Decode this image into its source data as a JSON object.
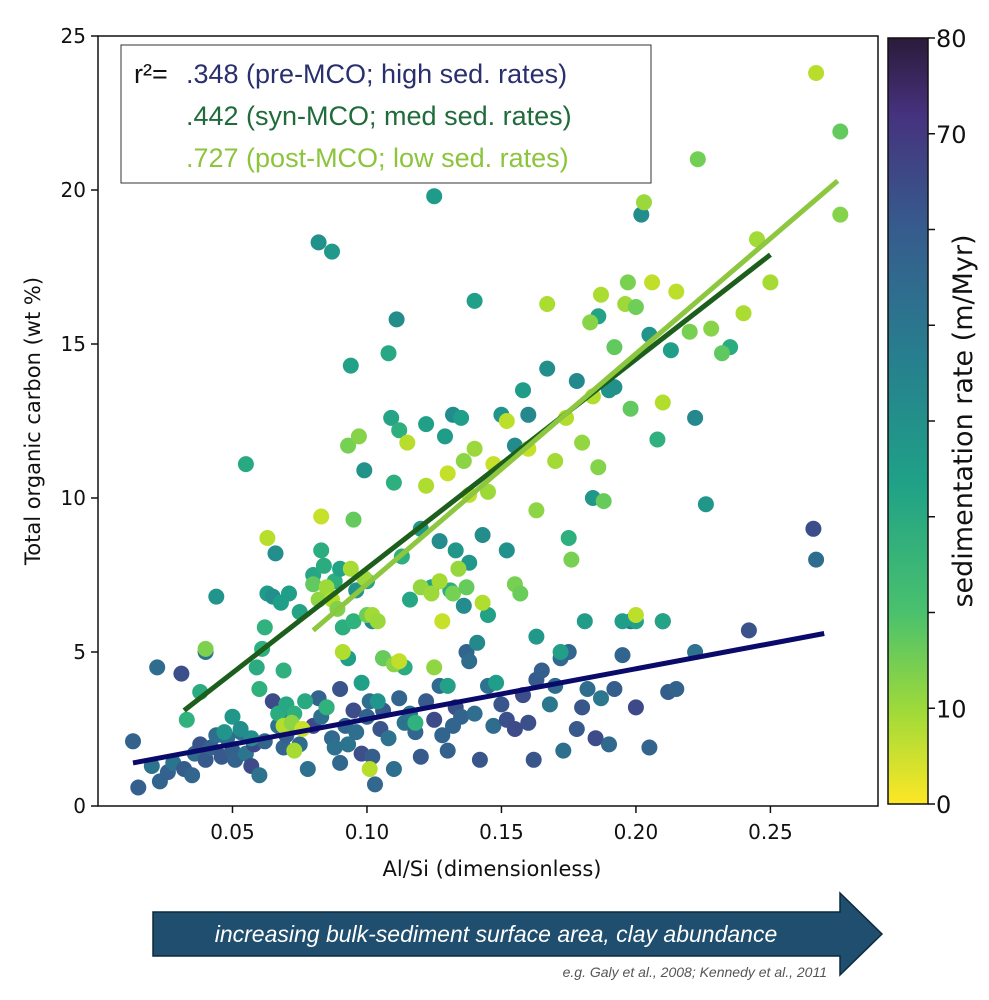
{
  "chart_data": {
    "type": "scatter",
    "xlabel": "Al/Si (dimensionless)",
    "ylabel": "Total organic carbon (wt %)",
    "xlim": [
      0.0,
      0.29
    ],
    "ylim": [
      0,
      25
    ],
    "x_ticks": [
      "0.05",
      "0.10",
      "0.15",
      "0.20",
      "0.25"
    ],
    "y_ticks": [
      "0",
      "5",
      "10",
      "15",
      "20",
      "25"
    ],
    "colorbar": {
      "label": "sedimentation rate (m/Myr)",
      "range": [
        0,
        80
      ],
      "colormap": "viridis_r",
      "ticks": [
        "0",
        "10",
        "70",
        "80"
      ]
    },
    "legend": {
      "prefix": "r²=",
      "entries": [
        {
          "text": ".348 (pre-MCO; high sed. rates)",
          "color": "#2a2f6e"
        },
        {
          "text": ".442 (syn-MCO; med sed. rates)",
          "color": "#1f6b3a"
        },
        {
          "text": ".727 (post-MCO; low sed. rates)",
          "color": "#8cc43c"
        }
      ]
    },
    "fit_lines": [
      {
        "name": "pre-MCO",
        "color": "#0a0a6a",
        "x": [
          0.013,
          0.27
        ],
        "y": [
          1.4,
          5.6
        ]
      },
      {
        "name": "syn-MCO",
        "color": "#1d5e1d",
        "x": [
          0.032,
          0.25
        ],
        "y": [
          3.1,
          17.9
        ]
      },
      {
        "name": "post-MCO",
        "color": "#8dc63f",
        "x": [
          0.08,
          0.275
        ],
        "y": [
          5.7,
          20.3
        ]
      }
    ],
    "series": [
      {
        "group": "pre-MCO",
        "sed_rate": 62,
        "points": [
          [
            0.013,
            2.1
          ],
          [
            0.015,
            0.6
          ],
          [
            0.02,
            1.3
          ],
          [
            0.022,
            4.5
          ],
          [
            0.023,
            0.8
          ],
          [
            0.026,
            1.1
          ],
          [
            0.028,
            1.4
          ],
          [
            0.031,
            4.3
          ],
          [
            0.032,
            1.2
          ],
          [
            0.035,
            1.0
          ],
          [
            0.036,
            1.7
          ],
          [
            0.038,
            2.0
          ],
          [
            0.04,
            1.5
          ],
          [
            0.04,
            5.0
          ],
          [
            0.042,
            1.9
          ],
          [
            0.044,
            2.3
          ],
          [
            0.046,
            1.6
          ],
          [
            0.048,
            2.2
          ],
          [
            0.05,
            1.8
          ],
          [
            0.051,
            1.5
          ],
          [
            0.053,
            2.4
          ],
          [
            0.055,
            1.7
          ],
          [
            0.057,
            1.3
          ],
          [
            0.058,
            2.0
          ],
          [
            0.06,
            1.0
          ],
          [
            0.062,
            2.1
          ],
          [
            0.065,
            3.4
          ],
          [
            0.067,
            2.6
          ],
          [
            0.069,
            1.9
          ],
          [
            0.07,
            2.3
          ],
          [
            0.072,
            2.9
          ],
          [
            0.075,
            2.0
          ],
          [
            0.078,
            1.2
          ],
          [
            0.08,
            2.6
          ],
          [
            0.082,
            3.5
          ],
          [
            0.083,
            2.9
          ],
          [
            0.085,
            3.2
          ],
          [
            0.087,
            2.2
          ],
          [
            0.088,
            1.9
          ],
          [
            0.09,
            3.8
          ],
          [
            0.09,
            1.4
          ],
          [
            0.092,
            2.6
          ],
          [
            0.093,
            2.0
          ],
          [
            0.095,
            3.1
          ],
          [
            0.096,
            2.4
          ],
          [
            0.098,
            1.7
          ],
          [
            0.1,
            2.9
          ],
          [
            0.101,
            3.4
          ],
          [
            0.102,
            1.6
          ],
          [
            0.103,
            0.7
          ],
          [
            0.105,
            2.5
          ],
          [
            0.106,
            3.1
          ],
          [
            0.108,
            2.2
          ],
          [
            0.11,
            1.2
          ],
          [
            0.112,
            3.5
          ],
          [
            0.114,
            2.7
          ],
          [
            0.116,
            3.0
          ],
          [
            0.118,
            2.4
          ],
          [
            0.12,
            1.6
          ],
          [
            0.122,
            3.4
          ],
          [
            0.125,
            2.8
          ],
          [
            0.127,
            3.9
          ],
          [
            0.128,
            2.3
          ],
          [
            0.13,
            1.8
          ],
          [
            0.132,
            2.6
          ],
          [
            0.133,
            3.2
          ],
          [
            0.135,
            2.9
          ],
          [
            0.137,
            5.0
          ],
          [
            0.138,
            4.7
          ],
          [
            0.14,
            3.0
          ],
          [
            0.142,
            1.5
          ],
          [
            0.145,
            3.9
          ],
          [
            0.147,
            2.6
          ],
          [
            0.15,
            3.3
          ],
          [
            0.152,
            2.8
          ],
          [
            0.155,
            2.5
          ],
          [
            0.158,
            3.6
          ],
          [
            0.16,
            2.7
          ],
          [
            0.162,
            1.5
          ],
          [
            0.163,
            4.1
          ],
          [
            0.165,
            4.4
          ],
          [
            0.168,
            3.3
          ],
          [
            0.17,
            3.9
          ],
          [
            0.172,
            4.8
          ],
          [
            0.173,
            1.8
          ],
          [
            0.175,
            5.0
          ],
          [
            0.178,
            2.5
          ],
          [
            0.18,
            3.2
          ],
          [
            0.182,
            3.8
          ],
          [
            0.185,
            2.2
          ],
          [
            0.187,
            3.5
          ],
          [
            0.19,
            2.0
          ],
          [
            0.192,
            3.8
          ],
          [
            0.195,
            4.9
          ],
          [
            0.198,
            6.0
          ],
          [
            0.2,
            3.2
          ],
          [
            0.205,
            1.9
          ],
          [
            0.21,
            6.0
          ],
          [
            0.212,
            3.7
          ],
          [
            0.215,
            3.8
          ],
          [
            0.222,
            5.0
          ],
          [
            0.242,
            5.7
          ],
          [
            0.266,
            9.0
          ],
          [
            0.267,
            8.0
          ]
        ]
      },
      {
        "group": "syn-MCO",
        "sed_rate": 40,
        "points": [
          [
            0.033,
            2.8
          ],
          [
            0.038,
            3.7
          ],
          [
            0.044,
            6.8
          ],
          [
            0.047,
            2.4
          ],
          [
            0.05,
            2.9
          ],
          [
            0.053,
            2.5
          ],
          [
            0.055,
            11.1
          ],
          [
            0.057,
            2.2
          ],
          [
            0.059,
            4.5
          ],
          [
            0.06,
            3.8
          ],
          [
            0.061,
            5.1
          ],
          [
            0.062,
            5.8
          ],
          [
            0.063,
            6.9
          ],
          [
            0.065,
            6.8
          ],
          [
            0.066,
            8.2
          ],
          [
            0.067,
            3.0
          ],
          [
            0.068,
            6.6
          ],
          [
            0.069,
            4.4
          ],
          [
            0.07,
            3.3
          ],
          [
            0.071,
            6.9
          ],
          [
            0.073,
            3.0
          ],
          [
            0.075,
            6.3
          ],
          [
            0.077,
            3.4
          ],
          [
            0.08,
            7.5
          ],
          [
            0.082,
            18.3
          ],
          [
            0.083,
            8.3
          ],
          [
            0.084,
            7.8
          ],
          [
            0.085,
            3.2
          ],
          [
            0.087,
            18.0
          ],
          [
            0.088,
            7.3
          ],
          [
            0.09,
            7.7
          ],
          [
            0.091,
            5.8
          ],
          [
            0.093,
            4.8
          ],
          [
            0.094,
            14.3
          ],
          [
            0.095,
            6.0
          ],
          [
            0.096,
            7.0
          ],
          [
            0.098,
            4.0
          ],
          [
            0.099,
            10.9
          ],
          [
            0.1,
            7.3
          ],
          [
            0.102,
            6.0
          ],
          [
            0.104,
            3.4
          ],
          [
            0.106,
            4.8
          ],
          [
            0.108,
            14.7
          ],
          [
            0.109,
            12.6
          ],
          [
            0.11,
            10.5
          ],
          [
            0.111,
            15.8
          ],
          [
            0.112,
            12.2
          ],
          [
            0.113,
            8.1
          ],
          [
            0.114,
            4.5
          ],
          [
            0.116,
            6.7
          ],
          [
            0.118,
            2.7
          ],
          [
            0.12,
            9.0
          ],
          [
            0.122,
            12.4
          ],
          [
            0.124,
            7.1
          ],
          [
            0.125,
            19.8
          ],
          [
            0.127,
            8.6
          ],
          [
            0.129,
            12.0
          ],
          [
            0.13,
            3.9
          ],
          [
            0.131,
            7.0
          ],
          [
            0.132,
            12.7
          ],
          [
            0.133,
            8.3
          ],
          [
            0.135,
            12.6
          ],
          [
            0.136,
            6.5
          ],
          [
            0.138,
            7.9
          ],
          [
            0.14,
            16.4
          ],
          [
            0.141,
            5.3
          ],
          [
            0.143,
            8.8
          ],
          [
            0.145,
            6.2
          ],
          [
            0.148,
            4.0
          ],
          [
            0.15,
            12.7
          ],
          [
            0.152,
            8.3
          ],
          [
            0.155,
            11.7
          ],
          [
            0.158,
            13.5
          ],
          [
            0.16,
            12.7
          ],
          [
            0.163,
            5.5
          ],
          [
            0.167,
            14.2
          ],
          [
            0.172,
            5.0
          ],
          [
            0.175,
            8.7
          ],
          [
            0.178,
            13.8
          ],
          [
            0.181,
            6.0
          ],
          [
            0.184,
            10.0
          ],
          [
            0.186,
            15.9
          ],
          [
            0.19,
            13.5
          ],
          [
            0.192,
            13.6
          ],
          [
            0.195,
            6.0
          ],
          [
            0.2,
            6.0
          ],
          [
            0.202,
            19.2
          ],
          [
            0.205,
            15.3
          ],
          [
            0.208,
            11.9
          ],
          [
            0.21,
            6.0
          ],
          [
            0.213,
            14.8
          ],
          [
            0.222,
            12.6
          ],
          [
            0.226,
            9.8
          ],
          [
            0.235,
            14.9
          ]
        ]
      },
      {
        "group": "post-MCO",
        "sed_rate": 15,
        "points": [
          [
            0.04,
            5.1
          ],
          [
            0.063,
            8.7
          ],
          [
            0.069,
            2.6
          ],
          [
            0.072,
            2.7
          ],
          [
            0.073,
            1.8
          ],
          [
            0.076,
            2.5
          ],
          [
            0.08,
            7.2
          ],
          [
            0.082,
            6.7
          ],
          [
            0.083,
            9.4
          ],
          [
            0.085,
            7.1
          ],
          [
            0.087,
            6.7
          ],
          [
            0.089,
            6.4
          ],
          [
            0.091,
            5.0
          ],
          [
            0.093,
            11.7
          ],
          [
            0.094,
            7.7
          ],
          [
            0.095,
            9.3
          ],
          [
            0.097,
            12.0
          ],
          [
            0.099,
            7.4
          ],
          [
            0.1,
            6.2
          ],
          [
            0.101,
            1.2
          ],
          [
            0.102,
            6.2
          ],
          [
            0.104,
            6.0
          ],
          [
            0.106,
            4.8
          ],
          [
            0.11,
            4.6
          ],
          [
            0.112,
            4.7
          ],
          [
            0.115,
            11.8
          ],
          [
            0.12,
            7.1
          ],
          [
            0.122,
            10.4
          ],
          [
            0.124,
            6.9
          ],
          [
            0.125,
            4.5
          ],
          [
            0.127,
            7.3
          ],
          [
            0.128,
            6.0
          ],
          [
            0.13,
            10.8
          ],
          [
            0.132,
            6.9
          ],
          [
            0.134,
            7.7
          ],
          [
            0.136,
            11.2
          ],
          [
            0.137,
            7.1
          ],
          [
            0.138,
            10.1
          ],
          [
            0.14,
            11.6
          ],
          [
            0.143,
            6.6
          ],
          [
            0.145,
            10.2
          ],
          [
            0.147,
            11.1
          ],
          [
            0.152,
            12.5
          ],
          [
            0.155,
            7.2
          ],
          [
            0.157,
            6.9
          ],
          [
            0.16,
            11.6
          ],
          [
            0.163,
            9.6
          ],
          [
            0.167,
            16.3
          ],
          [
            0.17,
            11.2
          ],
          [
            0.174,
            12.6
          ],
          [
            0.176,
            8.0
          ],
          [
            0.18,
            11.8
          ],
          [
            0.184,
            13.3
          ],
          [
            0.186,
            11.0
          ],
          [
            0.188,
            9.9
          ],
          [
            0.192,
            14.9
          ],
          [
            0.196,
            16.3
          ],
          [
            0.198,
            12.9
          ],
          [
            0.2,
            16.2
          ],
          [
            0.203,
            19.6
          ],
          [
            0.206,
            17.0
          ],
          [
            0.21,
            13.1
          ],
          [
            0.215,
            16.7
          ],
          [
            0.22,
            15.4
          ],
          [
            0.228,
            15.5
          ],
          [
            0.232,
            14.7
          ],
          [
            0.24,
            16.0
          ],
          [
            0.245,
            18.4
          ],
          [
            0.25,
            17.0
          ],
          [
            0.267,
            23.8
          ],
          [
            0.276,
            21.9
          ],
          [
            0.276,
            19.2
          ],
          [
            0.223,
            21.0
          ],
          [
            0.197,
            17.0
          ],
          [
            0.187,
            16.6
          ],
          [
            0.183,
            15.7
          ],
          [
            0.2,
            6.2
          ]
        ]
      }
    ]
  },
  "arrow": {
    "text": "increasing bulk-sediment surface area, clay abundance",
    "color": "#1f4e6e"
  },
  "citation": "e.g. Galy et al., 2008; Kennedy et al., 2011"
}
